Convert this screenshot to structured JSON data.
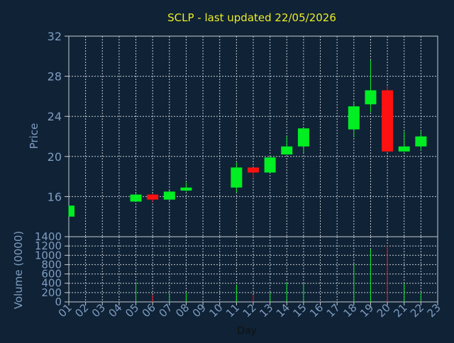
{
  "chart_data": [
    {
      "type": "candlestick",
      "title": "SCLP - last updated 22/05/2026",
      "ylabel": "Price",
      "ylim": [
        12,
        32
      ],
      "yticks": [
        16,
        20,
        24,
        28,
        32
      ],
      "up_color": "#00ee22",
      "down_color": "#ff1111",
      "candles": [
        {
          "day": "01",
          "open": 14.0,
          "close": 15.1,
          "high": 15.1,
          "low": 14.0
        },
        {
          "day": "05",
          "open": 15.5,
          "close": 16.2,
          "high": 16.3,
          "low": 15.5
        },
        {
          "day": "06",
          "open": 16.2,
          "close": 15.7,
          "high": 16.3,
          "low": 15.5
        },
        {
          "day": "07",
          "open": 15.7,
          "close": 16.5,
          "high": 16.6,
          "low": 15.6
        },
        {
          "day": "08",
          "open": 16.6,
          "close": 16.9,
          "high": 17.4,
          "low": 16.5
        },
        {
          "day": "11",
          "open": 16.9,
          "close": 18.9,
          "high": 19.4,
          "low": 16.4
        },
        {
          "day": "12",
          "open": 18.9,
          "close": 18.4,
          "high": 18.9,
          "low": 17.8
        },
        {
          "day": "13",
          "open": 18.4,
          "close": 19.9,
          "high": 20.1,
          "low": 18.4
        },
        {
          "day": "14",
          "open": 20.2,
          "close": 21.0,
          "high": 22.0,
          "low": 20.2
        },
        {
          "day": "15",
          "open": 21.0,
          "close": 22.8,
          "high": 22.8,
          "low": 20.4
        },
        {
          "day": "18",
          "open": 22.7,
          "close": 25.0,
          "high": 25.5,
          "low": 21.9
        },
        {
          "day": "19",
          "open": 25.2,
          "close": 26.6,
          "high": 29.6,
          "low": 24.4
        },
        {
          "day": "20",
          "open": 26.6,
          "close": 20.5,
          "high": 27.0,
          "low": 20.4
        },
        {
          "day": "21",
          "open": 20.5,
          "close": 21.0,
          "high": 22.5,
          "low": 20.5
        },
        {
          "day": "22",
          "open": 21.0,
          "close": 22.0,
          "high": 22.6,
          "low": 20.6
        }
      ]
    },
    {
      "type": "bar",
      "ylabel": "Volume (0000)",
      "xlabel": "Day",
      "ylim": [
        0,
        1400
      ],
      "yticks": [
        0,
        200,
        400,
        600,
        800,
        1000,
        1200,
        1400
      ],
      "categories": [
        "01",
        "02",
        "03",
        "04",
        "05",
        "06",
        "07",
        "08",
        "09",
        "10",
        "11",
        "12",
        "13",
        "14",
        "15",
        "16",
        "17",
        "18",
        "19",
        "20",
        "21",
        "22",
        "23"
      ],
      "values": [
        {
          "day": "01",
          "volume": 10,
          "direction": "up"
        },
        {
          "day": "05",
          "volume": 430,
          "direction": "up"
        },
        {
          "day": "06",
          "volume": 150,
          "direction": "down"
        },
        {
          "day": "07",
          "volume": 180,
          "direction": "up"
        },
        {
          "day": "08",
          "volume": 200,
          "direction": "up"
        },
        {
          "day": "11",
          "volume": 370,
          "direction": "up"
        },
        {
          "day": "12",
          "volume": 150,
          "direction": "down"
        },
        {
          "day": "13",
          "volume": 210,
          "direction": "up"
        },
        {
          "day": "14",
          "volume": 420,
          "direction": "up"
        },
        {
          "day": "15",
          "volume": 400,
          "direction": "up"
        },
        {
          "day": "18",
          "volume": 830,
          "direction": "up"
        },
        {
          "day": "19",
          "volume": 1130,
          "direction": "up"
        },
        {
          "day": "20",
          "volume": 1220,
          "direction": "down"
        },
        {
          "day": "21",
          "volume": 400,
          "direction": "up"
        },
        {
          "day": "22",
          "volume": 190,
          "direction": "up"
        }
      ]
    }
  ],
  "colors": {
    "background": "#0f2236",
    "plot_background": "#0f2236",
    "grid": "#c8ccd2",
    "axis_text": "#7f9dc0",
    "title_text": "#eded23",
    "xlabel_text": "#111111"
  }
}
